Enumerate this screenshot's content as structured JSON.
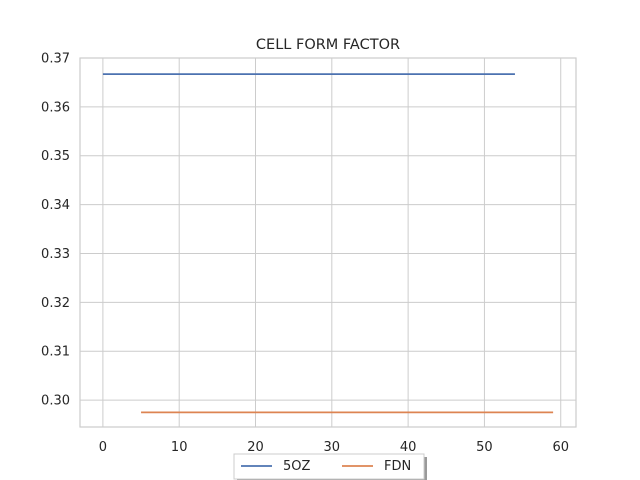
{
  "chart_data": {
    "type": "line",
    "title": "CELL FORM FACTOR",
    "xlabel": "",
    "ylabel": "",
    "xlim": [
      -3,
      62
    ],
    "ylim": [
      0.2945,
      0.37
    ],
    "x_ticks": [
      0,
      10,
      20,
      30,
      40,
      50,
      60
    ],
    "x_tick_labels": [
      "0",
      "10",
      "20",
      "30",
      "40",
      "50",
      "60"
    ],
    "y_ticks": [
      0.3,
      0.31,
      0.32,
      0.33,
      0.34,
      0.35,
      0.36,
      0.37
    ],
    "y_tick_labels": [
      "0.30",
      "0.31",
      "0.32",
      "0.33",
      "0.34",
      "0.35",
      "0.36",
      "0.37"
    ],
    "grid": true,
    "legend_position": "bottom-center",
    "series": [
      {
        "name": "5OZ",
        "color": "#4c72b0",
        "x": [
          0,
          54
        ],
        "y": [
          0.3667,
          0.3667
        ]
      },
      {
        "name": "FDN",
        "color": "#dd8452",
        "x": [
          5,
          59
        ],
        "y": [
          0.2975,
          0.2975
        ]
      }
    ]
  }
}
